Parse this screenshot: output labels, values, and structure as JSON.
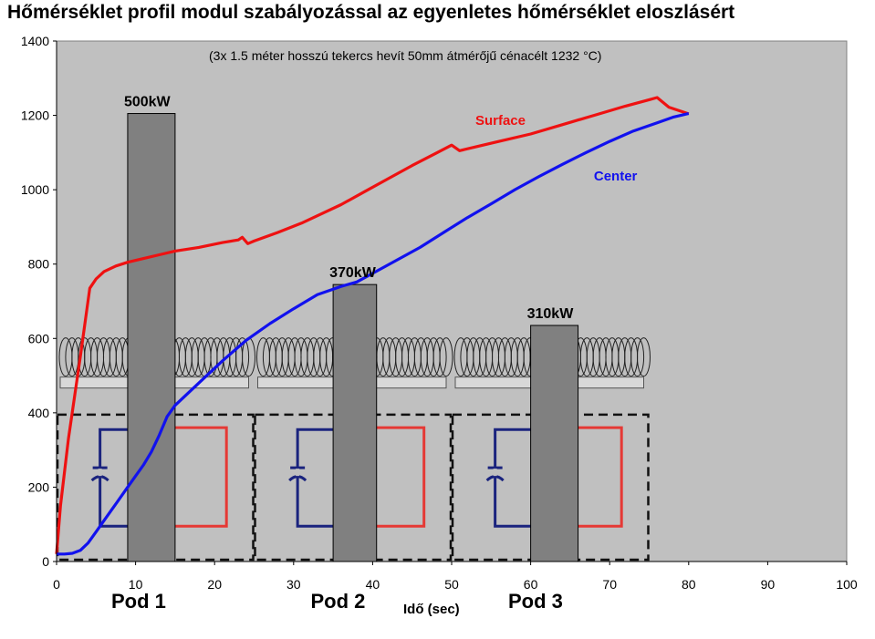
{
  "title": "Hőmérséklet profil modul szabályozással az egyenletes hőmérséklet eloszlásért",
  "chart_data": {
    "type": "line",
    "title": "Hőmérséklet profil modul szabályozással az egyenletes hőmérséklet eloszlásért",
    "subtitle": "(3x 1.5 méter hosszú tekercs hevít 50mm átmérőjű cénacélt 1232 °C)",
    "xlabel": "Idő (sec)",
    "ylabel": "",
    "xlim": [
      0,
      100
    ],
    "ylim": [
      0,
      1400
    ],
    "x_ticks": [
      "0",
      "10",
      "20",
      "30",
      "40",
      "50",
      "60",
      "70",
      "80",
      "90",
      "100"
    ],
    "y_ticks": [
      "0",
      "200",
      "400",
      "600",
      "800",
      "1000",
      "1200",
      "1400"
    ],
    "grid": false,
    "background": "#c0c0c0",
    "series": [
      {
        "name": "Surface",
        "color": "#ee1111",
        "points": [
          [
            0,
            20
          ],
          [
            0.5,
            150
          ],
          [
            1.5,
            330
          ],
          [
            3,
            550
          ],
          [
            4.2,
            735
          ],
          [
            5,
            760
          ],
          [
            6,
            780
          ],
          [
            7.5,
            795
          ],
          [
            9,
            805
          ],
          [
            11,
            815
          ],
          [
            13,
            825
          ],
          [
            15,
            835
          ],
          [
            18,
            845
          ],
          [
            21,
            858
          ],
          [
            23,
            865
          ],
          [
            23.5,
            872
          ],
          [
            24.2,
            855
          ],
          [
            25,
            862
          ],
          [
            28,
            885
          ],
          [
            31,
            910
          ],
          [
            33,
            930
          ],
          [
            36,
            960
          ],
          [
            39,
            995
          ],
          [
            42,
            1030
          ],
          [
            45,
            1065
          ],
          [
            48,
            1098
          ],
          [
            50,
            1120
          ],
          [
            51,
            1105
          ],
          [
            53,
            1115
          ],
          [
            56,
            1130
          ],
          [
            60,
            1150
          ],
          [
            64,
            1175
          ],
          [
            68,
            1200
          ],
          [
            72,
            1225
          ],
          [
            75,
            1242
          ],
          [
            76,
            1248
          ],
          [
            77.5,
            1222
          ],
          [
            80,
            1204
          ]
        ]
      },
      {
        "name": "Center",
        "color": "#1111ee",
        "points": [
          [
            0,
            20
          ],
          [
            1,
            20
          ],
          [
            2,
            22
          ],
          [
            3,
            30
          ],
          [
            4,
            50
          ],
          [
            5,
            80
          ],
          [
            6,
            110
          ],
          [
            7,
            140
          ],
          [
            8,
            170
          ],
          [
            9,
            200
          ],
          [
            10,
            230
          ],
          [
            11,
            260
          ],
          [
            12,
            295
          ],
          [
            13,
            340
          ],
          [
            14,
            390
          ],
          [
            15,
            420
          ],
          [
            18,
            480
          ],
          [
            21,
            540
          ],
          [
            24,
            595
          ],
          [
            27,
            640
          ],
          [
            30,
            680
          ],
          [
            33,
            718
          ],
          [
            36,
            740
          ],
          [
            38,
            752
          ],
          [
            40,
            775
          ],
          [
            43,
            810
          ],
          [
            46,
            845
          ],
          [
            49,
            885
          ],
          [
            52,
            925
          ],
          [
            55,
            962
          ],
          [
            58,
            1000
          ],
          [
            61,
            1035
          ],
          [
            64,
            1068
          ],
          [
            67,
            1100
          ],
          [
            70,
            1130
          ],
          [
            73,
            1158
          ],
          [
            76,
            1180
          ],
          [
            78,
            1195
          ],
          [
            80,
            1205
          ]
        ]
      }
    ],
    "annotations": [
      {
        "text": "Surface",
        "color": "#ee1111",
        "x": 53,
        "y": 1175
      },
      {
        "text": "Center",
        "color": "#1111ee",
        "x": 68,
        "y": 1025
      }
    ],
    "power_bars": [
      {
        "label": "500kW",
        "x_start": 9,
        "x_end": 15,
        "value": 1205
      },
      {
        "label": "370kW",
        "x_start": 35,
        "x_end": 40.5,
        "value": 745
      },
      {
        "label": "310kW",
        "x_start": 60,
        "x_end": 66,
        "value": 635
      }
    ],
    "pods": [
      {
        "label": "Pod 1",
        "x_start": 0,
        "x_end": 25
      },
      {
        "label": "Pod 2",
        "x_start": 25,
        "x_end": 50
      },
      {
        "label": "Pod 3",
        "x_start": 50,
        "x_end": 75
      }
    ]
  }
}
